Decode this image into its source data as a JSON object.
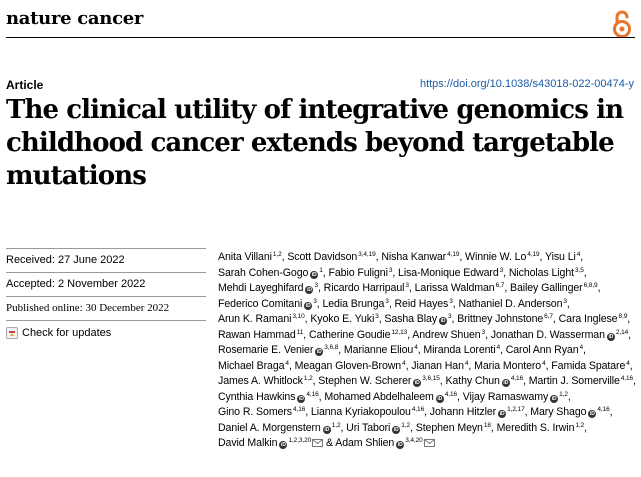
{
  "header": {
    "journal": "nature cancer",
    "article_type": "Article",
    "doi": "https://doi.org/10.1038/s43018-022-00474-y",
    "open_access_icon": "open-access-lock-icon",
    "accent_color": "#e8742b",
    "link_color": "#1a5ca8"
  },
  "title": "The clinical utility of integrative genomics in childhood cancer extends beyond targetable mutations",
  "dates": {
    "received": "Received: 27 June 2022",
    "accepted": "Accepted: 2 November 2022",
    "published": "Published online: 30 December 2022"
  },
  "check_updates": "Check for updates",
  "authors": [
    {
      "name": "Anita Villani",
      "sup": "1,2"
    },
    {
      "name": "Scott Davidson",
      "sup": "3,4,19"
    },
    {
      "name": "Nisha Kanwar",
      "sup": "4,19"
    },
    {
      "name": "Winnie W. Lo",
      "sup": "4,19"
    },
    {
      "name": "Yisu Li",
      "sup": "4"
    },
    {
      "name": "Sarah Cohen-Gogo",
      "sup": "1",
      "orcid": true,
      "sup_after": true
    },
    {
      "name": "Fabio Fuligni",
      "sup": "3"
    },
    {
      "name": "Lisa-Monique Edward",
      "sup": "3"
    },
    {
      "name": "Nicholas Light",
      "sup": "3,5"
    },
    {
      "name": "Mehdi Layeghifard",
      "sup": "3",
      "orcid": true,
      "sup_after": true
    },
    {
      "name": "Ricardo Harripaul",
      "sup": "3"
    },
    {
      "name": "Larissa Waldman",
      "sup": "6,7"
    },
    {
      "name": "Bailey Gallinger",
      "sup": "6,8,9"
    },
    {
      "name": "Federico Comitani",
      "sup": "3",
      "orcid": true,
      "sup_after": true
    },
    {
      "name": "Ledia Brunga",
      "sup": "3"
    },
    {
      "name": "Reid Hayes",
      "sup": "3"
    },
    {
      "name": "Nathaniel D. Anderson",
      "sup": "3"
    },
    {
      "name": "Arun K. Ramani",
      "sup": "3,10"
    },
    {
      "name": "Kyoko E. Yuki",
      "sup": "3"
    },
    {
      "name": "Sasha Blay",
      "sup": "3",
      "orcid": true,
      "sup_after": true
    },
    {
      "name": "Brittney Johnstone",
      "sup": "6,7"
    },
    {
      "name": "Cara Inglese",
      "sup": "8,9"
    },
    {
      "name": "Rawan Hammad",
      "sup": "11"
    },
    {
      "name": "Catherine Goudie",
      "sup": "12,13"
    },
    {
      "name": "Andrew Shuen",
      "sup": "3"
    },
    {
      "name": "Jonathan D. Wasserman",
      "sup": "2,14",
      "orcid": true,
      "sup_after": true
    },
    {
      "name": "Rosemarie E. Venier",
      "sup": "3,6,8",
      "orcid": true,
      "sup_after": true
    },
    {
      "name": "Marianne Eliou",
      "sup": "4"
    },
    {
      "name": "Miranda Lorenti",
      "sup": "4"
    },
    {
      "name": "Carol Ann Ryan",
      "sup": "4"
    },
    {
      "name": "Michael Braga",
      "sup": "4"
    },
    {
      "name": "Meagan Gloven-Brown",
      "sup": "4"
    },
    {
      "name": "Jianan Han",
      "sup": "4"
    },
    {
      "name": "Maria Montero",
      "sup": "4"
    },
    {
      "name": "Famida Spatare",
      "sup": "4"
    },
    {
      "name": "James A. Whitlock",
      "sup": "1,2"
    },
    {
      "name": "Stephen W. Scherer",
      "sup": "3,6,15",
      "orcid": true,
      "sup_after": true
    },
    {
      "name": "Kathy Chun",
      "sup": "4,16",
      "orcid": true,
      "sup_after": true
    },
    {
      "name": "Martin J. Somerville",
      "sup": "4,16"
    },
    {
      "name": "Cynthia Hawkins",
      "sup": "4,16",
      "orcid": true,
      "sup_after": true
    },
    {
      "name": "Mohamed Abdelhaleem",
      "sup": "4,16",
      "orcid": true,
      "sup_after": true
    },
    {
      "name": "Vijay Ramaswamy",
      "sup": "1,2",
      "orcid": true,
      "sup_after": true
    },
    {
      "name": "Gino R. Somers",
      "sup": "4,16"
    },
    {
      "name": "Lianna Kyriakopoulou",
      "sup": "4,16"
    },
    {
      "name": "Johann Hitzler",
      "sup": "1,2,17",
      "orcid": true,
      "sup_after": true
    },
    {
      "name": "Mary Shago",
      "sup": "4,16",
      "orcid": true,
      "sup_after": true
    },
    {
      "name": "Daniel A. Morgenstern",
      "sup": "1,2",
      "orcid": true,
      "sup_after": true
    },
    {
      "name": "Uri Tabori",
      "sup": "1,2",
      "orcid": true,
      "sup_after": true
    },
    {
      "name": "Stephen Meyn",
      "sup": "18"
    },
    {
      "name": "Meredith S. Irwin",
      "sup": "1,2"
    },
    {
      "name": "David Malkin",
      "sup": "1,2,3,20",
      "orcid": true,
      "sup_after": true,
      "mail": true
    },
    {
      "name": "Adam Shlien",
      "sup": "3,4,20",
      "orcid": true,
      "sup_after": true,
      "mail": true,
      "last": true
    }
  ],
  "orcid_label": "iD",
  "last_connector": "&"
}
